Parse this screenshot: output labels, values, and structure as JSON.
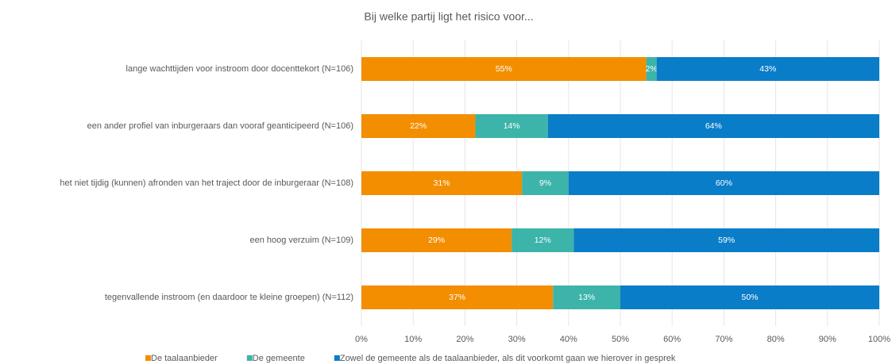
{
  "chart_data": {
    "type": "bar",
    "orientation": "horizontal",
    "stacked": true,
    "title": "Bij welke partij ligt het risico voor...",
    "categories": [
      "lange wachttijden voor instroom door docenttekort (N=106)",
      "een ander profiel van inburgeraars dan vooraf geanticipeerd (N=106)",
      "het niet tijdig (kunnen) afronden van het traject door de inburgeraar (N=108)",
      "een hoog verzuim (N=109)",
      "tegenvallende instroom (en daardoor te kleine groepen) (N=112)"
    ],
    "series": [
      {
        "name": "De taalaanbieder",
        "color": "#f28e00",
        "values": [
          55,
          22,
          31,
          29,
          37
        ],
        "value_labels": [
          "55%",
          "22%",
          "31%",
          "29%",
          "37%"
        ]
      },
      {
        "name": "De gemeente",
        "color": "#3cb4aa",
        "values": [
          2,
          14,
          9,
          12,
          13
        ],
        "value_labels": [
          "2%",
          "14%",
          "9%",
          "12%",
          "13%"
        ]
      },
      {
        "name": "Zowel de gemeente als de taalaanbieder, als dit voorkomt gaan we hierover in gesprek",
        "color": "#0a7dc8",
        "values": [
          43,
          64,
          60,
          59,
          50
        ],
        "value_labels": [
          "43%",
          "64%",
          "60%",
          "59%",
          "50%"
        ]
      }
    ],
    "xlim": [
      0,
      100
    ],
    "xticks": [
      {
        "value": 0,
        "label": "0%"
      },
      {
        "value": 10,
        "label": "10%"
      },
      {
        "value": 20,
        "label": "20%"
      },
      {
        "value": 30,
        "label": "30%"
      },
      {
        "value": 40,
        "label": "40%"
      },
      {
        "value": 50,
        "label": "50%"
      },
      {
        "value": 60,
        "label": "60%"
      },
      {
        "value": 70,
        "label": "70%"
      },
      {
        "value": 80,
        "label": "80%"
      },
      {
        "value": 90,
        "label": "90%"
      },
      {
        "value": 100,
        "label": "100%"
      }
    ],
    "grid": true,
    "legend": "bottom"
  }
}
